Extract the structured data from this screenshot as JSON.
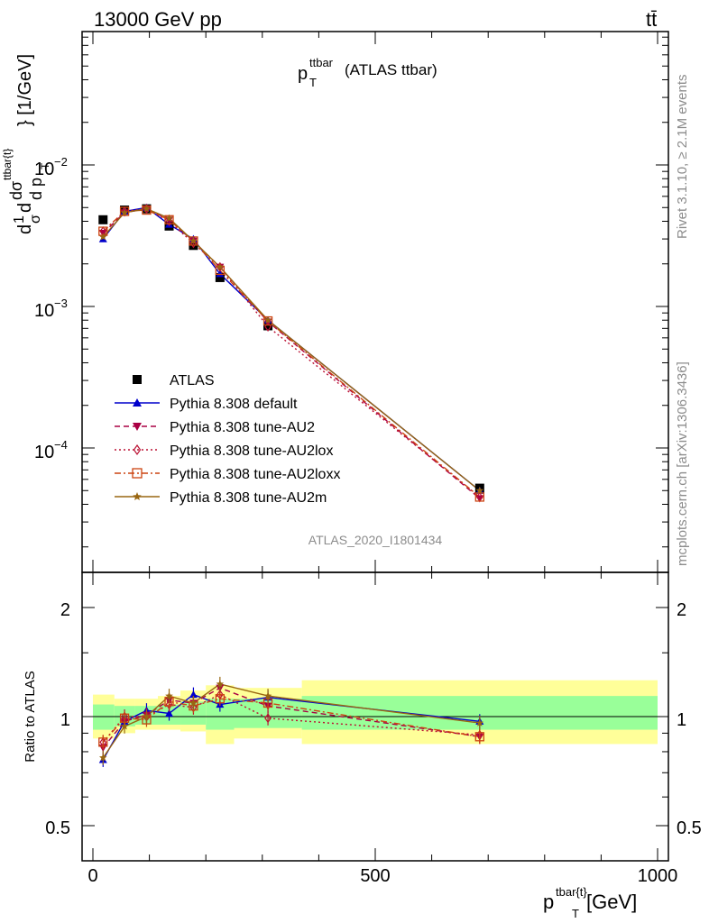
{
  "header": {
    "left": "13000 GeV pp",
    "right": "tt̄"
  },
  "top_plot": {
    "title_main": "p",
    "title_sup": "ttbar",
    "title_sub": "T",
    "title_suffix": "(ATLAS ttbar)",
    "ylabel": "d1dσ/σ d p_T {tbar{t}} [1/GeV]",
    "ylabel_parts": {
      "frac_num": "1",
      "frac_den": "σ",
      "d": "d",
      "dsigma": "dσ",
      "sigma_sup": "ttbar{t}",
      "dp": "d p",
      "dp_sub": "T",
      "tail": "} [1/GeV]",
      "lead_d": "d",
      "lead_d2": "d"
    },
    "ytick_labels": [
      {
        "base": "10",
        "exp": "−2"
      },
      {
        "base": "10",
        "exp": "−3"
      },
      {
        "base": "10",
        "exp": "−4"
      }
    ],
    "watermark": "ATLAS_2020_I1801434"
  },
  "ratio_plot": {
    "ylabel": "Ratio to ATLAS",
    "ytick_labels_left": [
      "2",
      "1",
      "0.5"
    ],
    "ytick_labels_right": [
      "2",
      "1",
      "0.5"
    ],
    "xtick_labels": [
      "0",
      "500",
      "1000"
    ],
    "xlabel_main": "p",
    "xlabel_sup": "tbar{t}",
    "xlabel_sub": "T",
    "xlabel_tail": "[GeV]"
  },
  "side_texts": {
    "rivet": "Rivet 3.1.10, ≥ 2.1M events",
    "mcplots": "mcplots.cern.ch [arXiv:1306.3436]"
  },
  "legend": [
    {
      "label": "ATLAS",
      "color": "#000000",
      "marker": "square-filled",
      "dash": "none"
    },
    {
      "label": "Pythia 8.308 default",
      "color": "#0000cc",
      "marker": "triangle-up",
      "dash": "solid"
    },
    {
      "label": "Pythia 8.308 tune-AU2",
      "color": "#aa0044",
      "marker": "triangle-down",
      "dash": "dashed"
    },
    {
      "label": "Pythia 8.308 tune-AU2lox",
      "color": "#bb1133",
      "marker": "diamond-open",
      "dash": "dotted"
    },
    {
      "label": "Pythia 8.308 tune-AU2loxx",
      "color": "#cc4411",
      "marker": "square-open",
      "dash": "dashdot"
    },
    {
      "label": "Pythia 8.308 tune-AU2m",
      "color": "#996611",
      "marker": "star",
      "dash": "solid"
    }
  ],
  "colors": {
    "band_outer": "#ffff99",
    "band_inner": "#99ff99"
  },
  "chart_data": [
    {
      "type": "line",
      "title": "p_T^ttbar (ATLAS ttbar)",
      "xlabel": "",
      "ylabel": "1/σ dσ/dp_T [1/GeV]",
      "xlim": [
        -20,
        1020
      ],
      "ylim": [
        1.8e-05,
        0.09
      ],
      "yscale": "log",
      "x": [
        18,
        56,
        95,
        135,
        178,
        225,
        310,
        685
      ],
      "series": [
        {
          "name": "ATLAS",
          "values": [
            0.0041,
            0.0048,
            0.0049,
            0.0037,
            0.0027,
            0.0016,
            0.00073,
            5.2e-05
          ]
        },
        {
          "name": "Pythia 8.308 default",
          "values": [
            0.003,
            0.0047,
            0.005,
            0.0038,
            0.003,
            0.0017,
            0.0008,
            5e-05
          ]
        },
        {
          "name": "Pythia 8.308 tune-AU2",
          "values": [
            0.0033,
            0.0046,
            0.0049,
            0.0041,
            0.0029,
            0.0019,
            0.00078,
            4.4e-05
          ]
        },
        {
          "name": "Pythia 8.308 tune-AU2lox",
          "values": [
            0.0034,
            0.0047,
            0.0049,
            0.004,
            0.0028,
            0.0019,
            0.00072,
            4.5e-05
          ]
        },
        {
          "name": "Pythia 8.308 tune-AU2loxx",
          "values": [
            0.0034,
            0.0047,
            0.0048,
            0.0041,
            0.0029,
            0.0018,
            0.00079,
            4.5e-05
          ]
        },
        {
          "name": "Pythia 8.308 tune-AU2m",
          "values": [
            0.0031,
            0.0046,
            0.0049,
            0.0042,
            0.0029,
            0.0019,
            0.0008,
            5e-05
          ]
        }
      ]
    },
    {
      "type": "line",
      "title": "",
      "xlabel": "p_T^{tbar{t}} [GeV]",
      "ylabel": "Ratio to ATLAS",
      "xlim": [
        -20,
        1020
      ],
      "ylim": [
        0.4,
        2.4
      ],
      "yscale": "log",
      "x": [
        18,
        56,
        95,
        135,
        178,
        225,
        310,
        685
      ],
      "band_edges": [
        0,
        38,
        75,
        115,
        155,
        200,
        250,
        370,
        1000
      ],
      "band_outer": [
        [
          0.87,
          1.15
        ],
        [
          0.9,
          1.12
        ],
        [
          0.92,
          1.12
        ],
        [
          0.92,
          1.14
        ],
        [
          0.91,
          1.18
        ],
        [
          0.84,
          1.22
        ],
        [
          0.87,
          1.2
        ],
        [
          0.84,
          1.26
        ]
      ],
      "band_inner": [
        [
          0.92,
          1.08
        ],
        [
          0.94,
          1.07
        ],
        [
          0.95,
          1.07
        ],
        [
          0.95,
          1.08
        ],
        [
          0.95,
          1.1
        ],
        [
          0.92,
          1.12
        ],
        [
          0.93,
          1.12
        ],
        [
          0.92,
          1.14
        ]
      ],
      "series": [
        {
          "name": "Pythia 8.308 default",
          "values": [
            0.76,
            0.97,
            1.04,
            1.02,
            1.15,
            1.08,
            1.13,
            0.97
          ]
        },
        {
          "name": "Pythia 8.308 tune-AU2",
          "values": [
            0.82,
            0.97,
            1.01,
            1.11,
            1.09,
            1.2,
            1.07,
            0.88
          ]
        },
        {
          "name": "Pythia 8.308 tune-AU2lox",
          "values": [
            0.85,
            1.0,
            1.0,
            1.08,
            1.06,
            1.15,
            0.99,
            0.89
          ]
        },
        {
          "name": "Pythia 8.308 tune-AU2loxx",
          "values": [
            0.85,
            0.99,
            0.98,
            1.1,
            1.07,
            1.12,
            1.09,
            0.88
          ]
        },
        {
          "name": "Pythia 8.308 tune-AU2m",
          "values": [
            0.77,
            0.94,
            1.0,
            1.14,
            1.09,
            1.23,
            1.14,
            0.96
          ]
        }
      ]
    }
  ]
}
